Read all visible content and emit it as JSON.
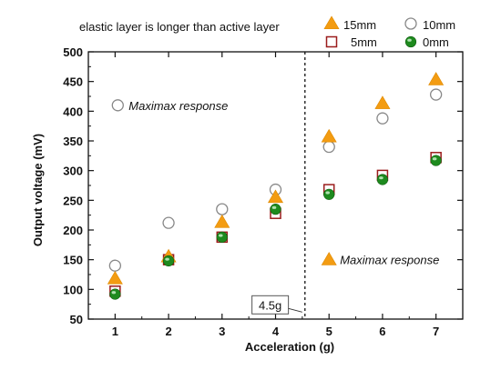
{
  "chart_data": {
    "type": "scatter",
    "title": "",
    "xlabel": "Acceleration (g)",
    "ylabel": "Output voltage (mV)",
    "xlim": [
      0.5,
      7.5
    ],
    "ylim": [
      50,
      500
    ],
    "xticks": [
      1,
      2,
      3,
      4,
      5,
      6,
      7
    ],
    "yticks": [
      50,
      100,
      150,
      200,
      250,
      300,
      350,
      400,
      450,
      500
    ],
    "x": [
      1,
      2,
      3,
      4,
      5,
      6,
      7
    ],
    "legend_title": "elastic layer is longer than active layer",
    "legend_position": "top-right",
    "series": [
      {
        "name": "15mm",
        "marker": "triangle",
        "color": "#f39c12",
        "values": [
          118,
          155,
          213,
          255,
          357,
          413,
          453
        ]
      },
      {
        "name": "10mm",
        "marker": "circle-open",
        "color": "#888888",
        "values": [
          140,
          212,
          235,
          268,
          340,
          388,
          428
        ]
      },
      {
        "name": "5mm",
        "marker": "square-open",
        "color": "#9b1c1c",
        "values": [
          97,
          150,
          188,
          228,
          268,
          292,
          322
        ]
      },
      {
        "name": "0mm",
        "marker": "circle-filled",
        "color": "#1e8a1e",
        "values": [
          92,
          148,
          188,
          235,
          260,
          285,
          317
        ]
      }
    ],
    "annotations": [
      {
        "text": "Maximax response",
        "marker": "circle-open",
        "x": 1.05,
        "y": 410
      },
      {
        "text": "Maximax response",
        "marker": "triangle",
        "x": 5.0,
        "y": 150
      }
    ],
    "vline": {
      "x": 4.55,
      "label": "4.5g",
      "label_x": 3.9,
      "label_y": 74
    }
  }
}
